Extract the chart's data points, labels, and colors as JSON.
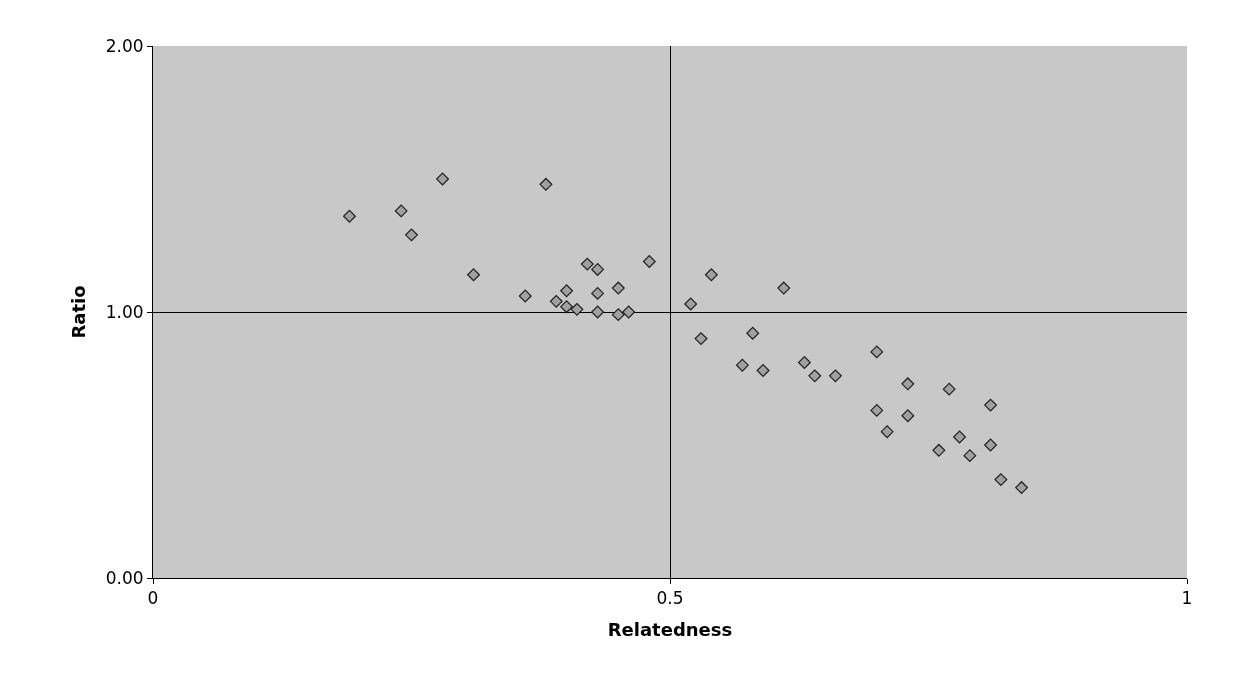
{
  "chart_data": {
    "type": "scatter",
    "xlabel": "Relatedness",
    "ylabel": "Ratio",
    "xlim": [
      0,
      1
    ],
    "xticks": [
      0,
      0.5,
      1
    ],
    "ylim": [
      0,
      2
    ],
    "yticks": [
      {
        "value": 0,
        "label": "0.00"
      },
      {
        "value": 1,
        "label": "1.00"
      },
      {
        "value": 2,
        "label": "2.00"
      }
    ],
    "grid": true,
    "marker": "diamond",
    "series": [
      {
        "color": "#a0a0a0",
        "x": [
          0.19,
          0.24,
          0.25,
          0.28,
          0.31,
          0.36,
          0.38,
          0.39,
          0.4,
          0.4,
          0.41,
          0.42,
          0.43,
          0.43,
          0.43,
          0.45,
          0.45,
          0.46,
          0.48,
          0.52,
          0.53,
          0.54,
          0.57,
          0.58,
          0.59,
          0.61,
          0.63,
          0.64,
          0.66,
          0.7,
          0.7,
          0.71,
          0.73,
          0.73,
          0.76,
          0.77,
          0.78,
          0.79,
          0.81,
          0.81,
          0.82,
          0.84
        ],
        "values": [
          1.36,
          1.38,
          1.29,
          1.5,
          1.14,
          1.06,
          1.48,
          1.04,
          1.08,
          1.02,
          1.01,
          1.18,
          1.16,
          1.07,
          1.0,
          1.09,
          0.99,
          1.0,
          1.19,
          1.03,
          0.9,
          1.14,
          0.8,
          0.92,
          0.78,
          1.09,
          0.81,
          0.76,
          0.76,
          0.85,
          0.63,
          0.55,
          0.73,
          0.61,
          0.48,
          0.71,
          0.53,
          0.46,
          0.65,
          0.5,
          0.37,
          0.34
        ]
      }
    ]
  }
}
